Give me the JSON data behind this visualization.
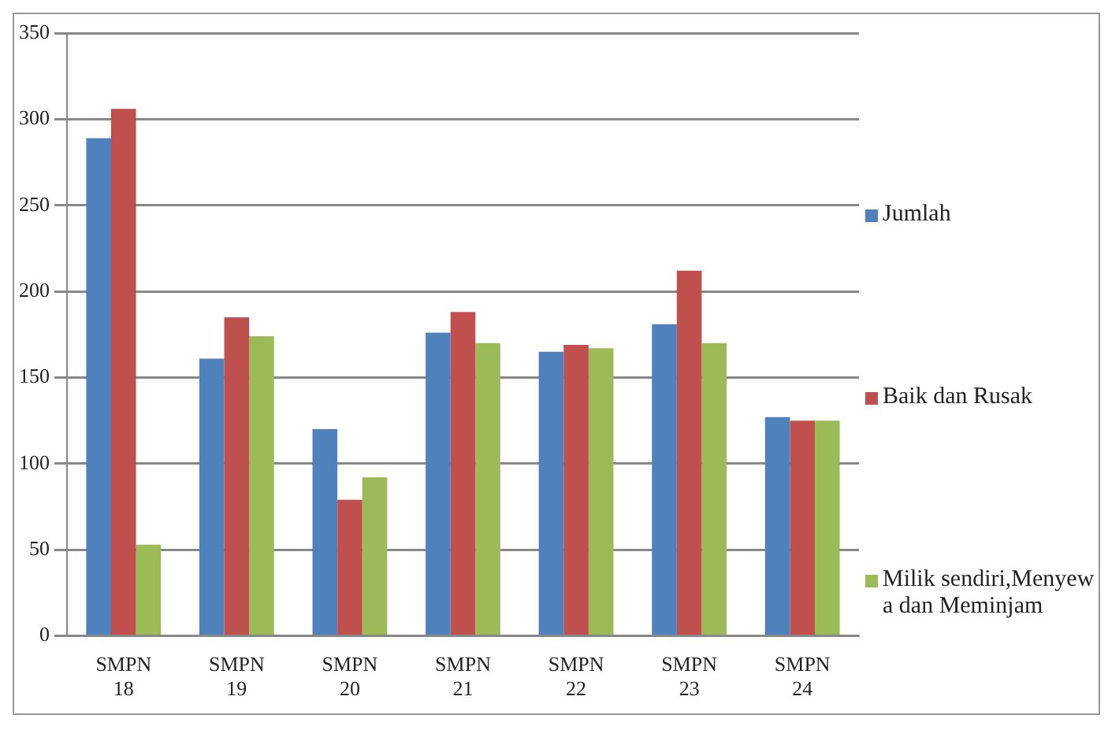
{
  "chart_data": {
    "type": "bar",
    "categories": [
      "SMPN 18",
      "SMPN 19",
      "SMPN 20",
      "SMPN 21",
      "SMPN 22",
      "SMPN 23",
      "SMPN 24"
    ],
    "series": [
      {
        "name": "Jumlah",
        "color": "#4f81bd",
        "values": [
          289,
          161,
          120,
          176,
          165,
          181,
          127
        ]
      },
      {
        "name": "Baik dan Rusak",
        "color": "#c0504d",
        "values": [
          306,
          185,
          79,
          188,
          169,
          212,
          125
        ]
      },
      {
        "name": "Milik sendiri,Menyewa dan Meminjam",
        "color": "#9bbb59",
        "values": [
          53,
          174,
          92,
          170,
          167,
          170,
          125
        ]
      }
    ],
    "ylim": [
      0,
      350
    ],
    "yticks": [
      0,
      50,
      100,
      150,
      200,
      250,
      300,
      350
    ],
    "grid": "y",
    "legend": "right"
  }
}
